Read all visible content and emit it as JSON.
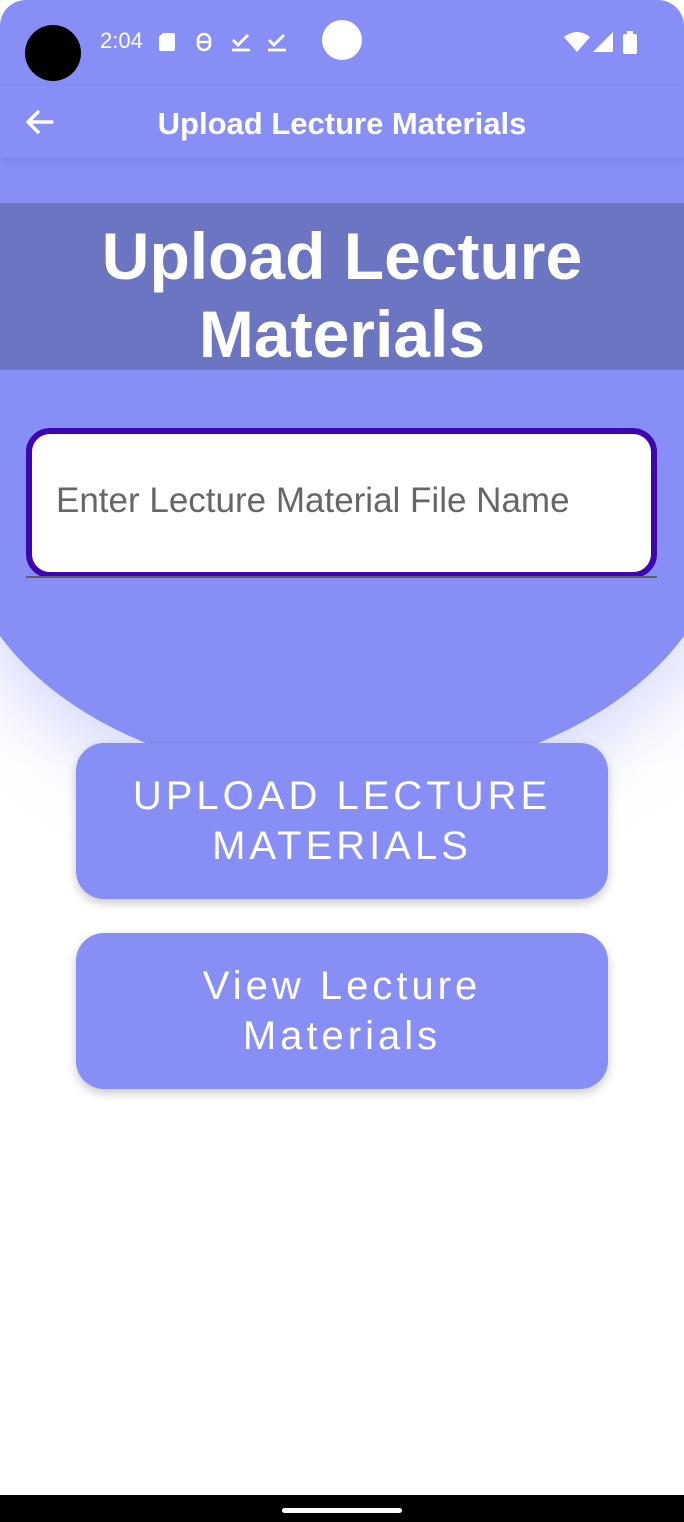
{
  "status_bar": {
    "time": "2:04",
    "icons": [
      "sd-card-icon",
      "bug-icon",
      "download-done-icon",
      "download-done-icon",
      "wifi-icon",
      "signal-icon",
      "battery-icon"
    ]
  },
  "toolbar": {
    "back_icon": "arrow-back-icon",
    "title": "Upload Lecture Materials"
  },
  "header": {
    "title_line1": "Upload Lecture",
    "title_line2": "Materials"
  },
  "form": {
    "file_name_placeholder": "Enter Lecture Material File Name",
    "file_name_value": ""
  },
  "buttons": {
    "upload_line1": "UPLOAD LECTURE",
    "upload_line2": "MATERIALS",
    "view_line1": "View Lecture",
    "view_line2": "Materials"
  },
  "colors": {
    "primary": "#878ff6",
    "header_band": "#6b75c2",
    "input_border": "#3d06b0"
  }
}
